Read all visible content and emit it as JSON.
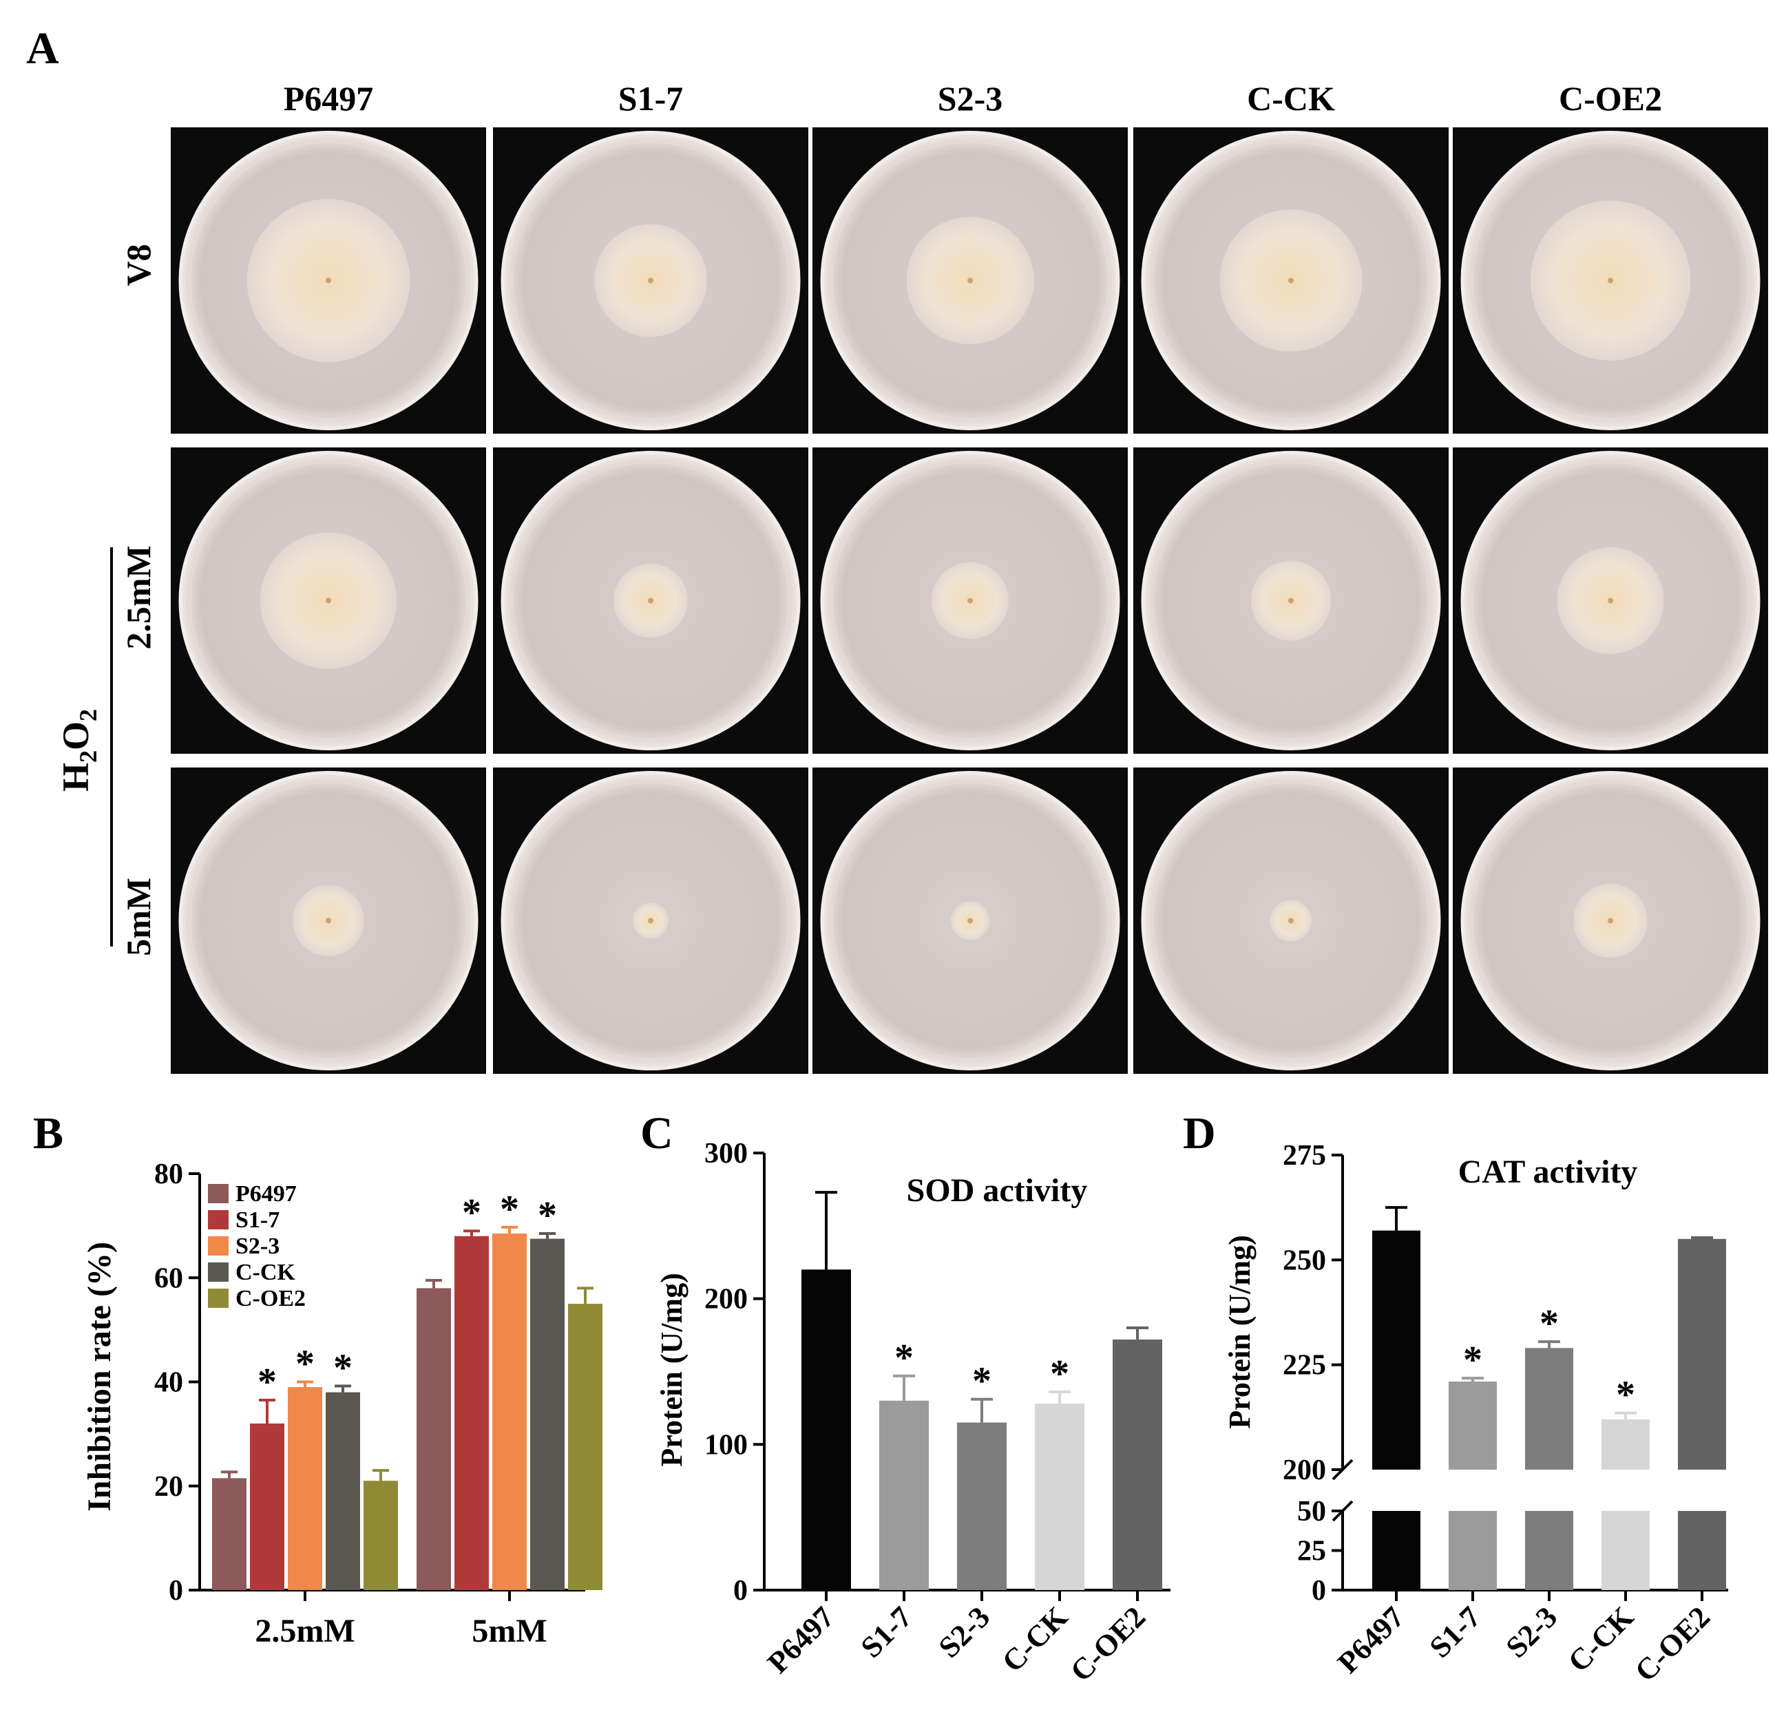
{
  "panels": {
    "A": {
      "label": "A",
      "columns": [
        "P6497",
        "S1-7",
        "S2-3",
        "C-CK",
        "C-OE2"
      ],
      "rows": [
        "V8",
        "2.5mM",
        "5mM"
      ],
      "group_label": "H2O2",
      "colony_relative_size": [
        [
          0.55,
          0.38,
          0.43,
          0.48,
          0.54
        ],
        [
          0.46,
          0.25,
          0.26,
          0.27,
          0.36
        ],
        [
          0.24,
          0.12,
          0.13,
          0.14,
          0.25
        ]
      ]
    },
    "B": {
      "label": "B"
    },
    "C": {
      "label": "C"
    },
    "D": {
      "label": "D"
    }
  },
  "chart_data": [
    {
      "panel": "B",
      "type": "bar",
      "categories": [
        "2.5mM",
        "5mM"
      ],
      "series": [
        {
          "name": "P6497",
          "color": "#8c5a5a",
          "values": [
            21.5,
            58
          ],
          "errors": [
            1.2,
            1.5
          ],
          "sig": [
            false,
            false
          ]
        },
        {
          "name": "S1-7",
          "color": "#b03a3a",
          "values": [
            32,
            68
          ],
          "errors": [
            4.5,
            1.0
          ],
          "sig": [
            true,
            true
          ]
        },
        {
          "name": "S2-3",
          "color": "#f0884a",
          "values": [
            39,
            68.5
          ],
          "errors": [
            1.0,
            1.2
          ],
          "sig": [
            true,
            true
          ]
        },
        {
          "name": "C-CK",
          "color": "#5a5850",
          "values": [
            38,
            67.5
          ],
          "errors": [
            1.2,
            1.0
          ],
          "sig": [
            true,
            true
          ]
        },
        {
          "name": "C-OE2",
          "color": "#8f8a35",
          "values": [
            21,
            55
          ],
          "errors": [
            2.0,
            3.0
          ],
          "sig": [
            false,
            false
          ]
        }
      ],
      "ylabel": "Inhibition rate (%)",
      "ylim": [
        0,
        80
      ],
      "yticks": [
        "0",
        "20",
        "40",
        "60",
        "80"
      ],
      "sig_mark": "*",
      "legend": "top-left"
    },
    {
      "panel": "C",
      "type": "bar",
      "title": "SOD activity",
      "categories": [
        "P6497",
        "S1-7",
        "S2-3",
        "C-CK",
        "C-OE2"
      ],
      "values": [
        220,
        130,
        115,
        128,
        172
      ],
      "errors": [
        53,
        17,
        16,
        8,
        8
      ],
      "sig": [
        false,
        true,
        true,
        true,
        false
      ],
      "colors": [
        "#050505",
        "#9b9b9b",
        "#7d7d7d",
        "#d6d6d6",
        "#636363"
      ],
      "ylabel": "Protein (U/mg)",
      "ylim": [
        0,
        300
      ],
      "yticks": [
        "0",
        "100",
        "200",
        "300"
      ],
      "sig_mark": "*"
    },
    {
      "panel": "D",
      "type": "bar",
      "title": "CAT activity",
      "categories": [
        "P6497",
        "S1-7",
        "S2-3",
        "C-CK",
        "C-OE2"
      ],
      "values": [
        257,
        221,
        229,
        212,
        255
      ],
      "errors": [
        5.5,
        0.8,
        1.5,
        1.5,
        0.3
      ],
      "sig": [
        false,
        true,
        true,
        true,
        false
      ],
      "colors": [
        "#050505",
        "#9b9b9b",
        "#7d7d7d",
        "#d6d6d6",
        "#636363"
      ],
      "ylabel": "Protein (U/mg)",
      "ylim": [
        0,
        275
      ],
      "axis_break": [
        50,
        200
      ],
      "yticks_lower": [
        "0",
        "25",
        "50"
      ],
      "yticks_upper": [
        "200",
        "225",
        "250",
        "275"
      ],
      "sig_mark": "*"
    }
  ]
}
